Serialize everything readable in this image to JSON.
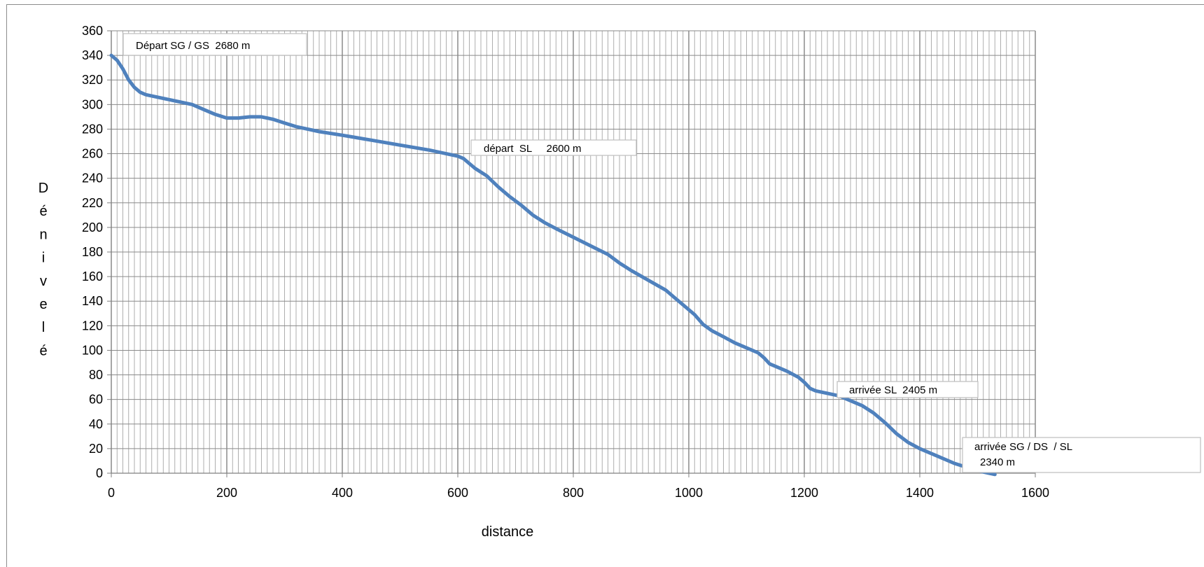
{
  "chart_data": {
    "type": "line",
    "title": "",
    "xlabel": "distance",
    "ylabel": "Dénivelé",
    "xlim": [
      0,
      1600
    ],
    "ylim": [
      0,
      360
    ],
    "x_ticks": [
      0,
      200,
      400,
      600,
      800,
      1000,
      1200,
      1400,
      1600
    ],
    "y_ticks": [
      0,
      20,
      40,
      60,
      80,
      100,
      120,
      140,
      160,
      180,
      200,
      220,
      240,
      260,
      280,
      300,
      320,
      340,
      360
    ],
    "grid": true,
    "legend": "none",
    "series": [
      {
        "color": "#4f81bd",
        "x": [
          0,
          10,
          20,
          30,
          40,
          50,
          60,
          80,
          100,
          120,
          140,
          160,
          180,
          200,
          220,
          240,
          260,
          280,
          300,
          320,
          340,
          360,
          400,
          450,
          500,
          550,
          600,
          610,
          620,
          630,
          650,
          670,
          690,
          710,
          730,
          750,
          770,
          800,
          830,
          860,
          880,
          900,
          930,
          960,
          975,
          990,
          1010,
          1025,
          1040,
          1060,
          1080,
          1100,
          1120,
          1130,
          1140,
          1150,
          1170,
          1190,
          1200,
          1210,
          1220,
          1240,
          1260,
          1280,
          1300,
          1320,
          1340,
          1360,
          1380,
          1400,
          1430,
          1460,
          1480,
          1500,
          1520,
          1530
        ],
        "y": [
          340,
          336,
          329,
          320,
          314,
          310,
          308,
          306,
          304,
          302,
          300,
          296,
          292,
          289,
          289,
          290,
          290,
          288,
          285,
          282,
          280,
          278,
          275,
          271,
          267,
          263,
          258,
          256,
          252,
          248,
          242,
          233,
          225,
          218,
          210,
          204,
          199,
          192,
          185,
          178,
          171,
          165,
          157,
          149,
          143,
          137,
          129,
          121,
          116,
          111,
          106,
          102,
          98,
          94,
          89,
          87,
          83,
          78,
          74,
          69,
          67,
          65,
          63,
          59,
          55,
          49,
          41,
          32,
          25,
          20,
          14,
          8,
          5,
          2,
          0,
          -1
        ]
      }
    ],
    "annotations": [
      {
        "text": "Départ SG / GS  2680 m"
      },
      {
        "text": "départ  SL     2600 m"
      },
      {
        "text": "arrivée SL  2405 m"
      },
      {
        "lines": [
          "arrivée SG / DS  / SL",
          "2340 m"
        ]
      }
    ]
  }
}
